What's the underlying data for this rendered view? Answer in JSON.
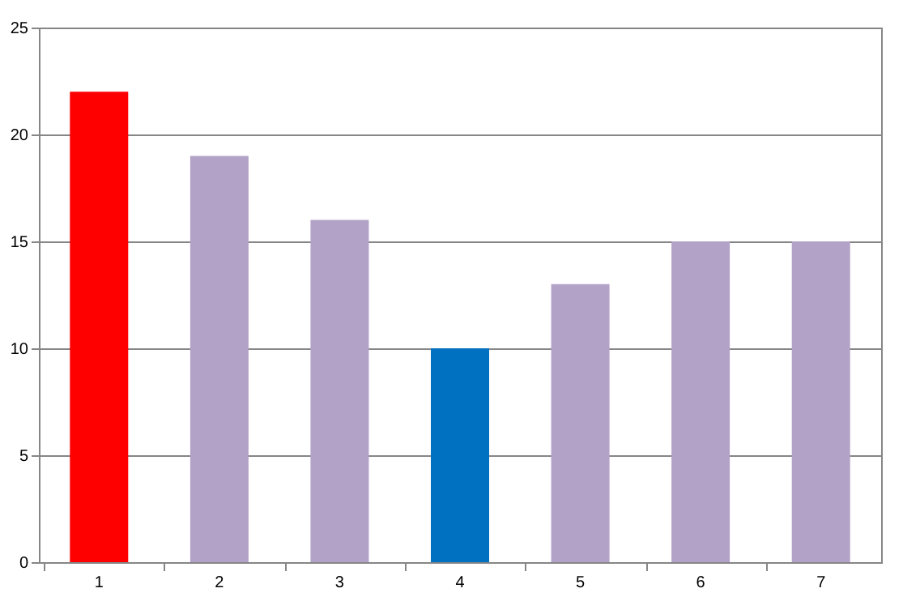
{
  "chart_data": {
    "type": "bar",
    "categories": [
      "1",
      "2",
      "3",
      "4",
      "5",
      "6",
      "7"
    ],
    "values": [
      22,
      19,
      16,
      10,
      13,
      15,
      15
    ],
    "colors": [
      "#ff0000",
      "#b3a2c7",
      "#b3a2c7",
      "#0070c0",
      "#b3a2c7",
      "#b3a2c7",
      "#b3a2c7"
    ],
    "ylim": [
      0,
      25
    ],
    "yticks": [
      0,
      5,
      10,
      15,
      20,
      25
    ],
    "grid": "y"
  }
}
